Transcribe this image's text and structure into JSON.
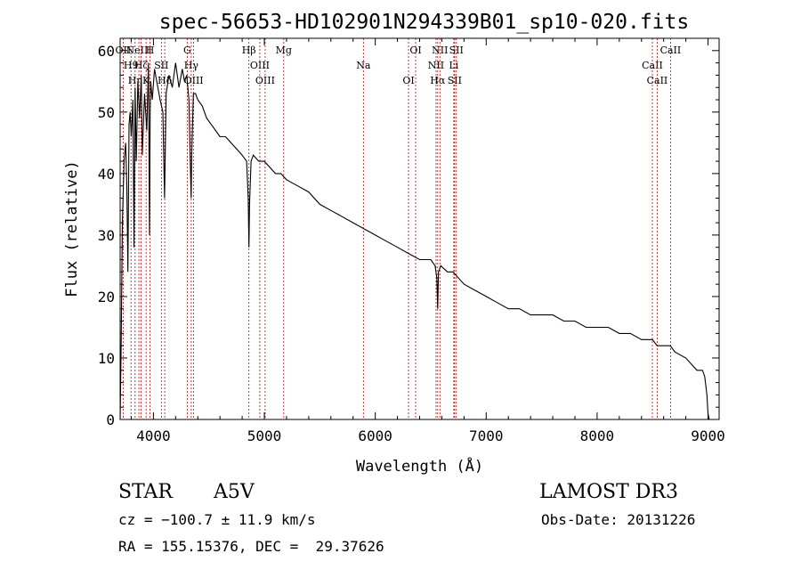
{
  "chart_data": {
    "type": "line",
    "title": "spec-56653-HD102901N294339B01_sp10-020.fits",
    "xlabel": "Wavelength (Å)",
    "ylabel": "Flux (relative)",
    "xlim": [
      3700,
      9100
    ],
    "ylim": [
      0,
      62
    ],
    "xticks": [
      4000,
      5000,
      6000,
      7000,
      8000,
      9000
    ],
    "yticks": [
      0,
      10,
      20,
      30,
      40,
      50,
      60
    ],
    "grid": false,
    "series": [
      {
        "name": "spectrum",
        "x": [
          3700,
          3710,
          3720,
          3735,
          3750,
          3760,
          3770,
          3780,
          3790,
          3800,
          3815,
          3825,
          3835,
          3845,
          3860,
          3875,
          3890,
          3900,
          3920,
          3940,
          3955,
          3965,
          3970,
          3975,
          3990,
          4010,
          4030,
          4060,
          4085,
          4100,
          4115,
          4140,
          4170,
          4200,
          4230,
          4260,
          4280,
          4300,
          4320,
          4335,
          4340,
          4345,
          4360,
          4380,
          4400,
          4440,
          4480,
          4520,
          4560,
          4600,
          4650,
          4700,
          4750,
          4800,
          4840,
          4855,
          4861,
          4867,
          4880,
          4900,
          4950,
          5000,
          5050,
          5100,
          5150,
          5200,
          5300,
          5400,
          5500,
          5600,
          5700,
          5800,
          5900,
          6000,
          6100,
          6200,
          6300,
          6400,
          6450,
          6500,
          6540,
          6555,
          6563,
          6570,
          6590,
          6650,
          6700,
          6800,
          6900,
          7000,
          7100,
          7200,
          7300,
          7400,
          7500,
          7600,
          7700,
          7800,
          7900,
          8000,
          8100,
          8200,
          8300,
          8400,
          8450,
          8500,
          8540,
          8600,
          8660,
          8700,
          8800,
          8850,
          8900,
          8950,
          8970,
          8990,
          9000,
          9010
        ],
        "y": [
          0,
          13,
          32,
          42,
          45,
          38,
          24,
          48,
          50,
          46,
          52,
          28,
          54,
          42,
          55,
          49,
          56,
          43,
          53,
          47,
          58,
          30,
          50,
          55,
          52,
          57,
          55,
          52,
          50,
          36,
          53,
          56,
          54,
          58,
          54,
          57,
          55,
          56,
          52,
          40,
          36,
          43,
          53,
          53,
          52,
          51,
          49,
          48,
          47,
          46,
          46,
          45,
          44,
          43,
          42,
          36,
          28,
          35,
          42,
          43,
          42,
          42,
          41,
          40,
          40,
          39,
          38,
          37,
          35,
          34,
          33,
          32,
          31,
          30,
          29,
          28,
          27,
          26,
          26,
          26,
          25,
          23,
          18,
          24,
          25,
          24,
          24,
          22,
          21,
          20,
          19,
          18,
          18,
          17,
          17,
          17,
          16,
          16,
          15,
          15,
          15,
          14,
          14,
          13,
          13,
          13,
          12,
          12,
          12,
          11,
          10,
          9,
          8,
          8,
          7,
          4,
          1,
          0
        ]
      }
    ],
    "lines": [
      {
        "x": 3727,
        "label": "OII"
      },
      {
        "x": 3798,
        "label": "H9"
      },
      {
        "x": 3835,
        "label": "Hη"
      },
      {
        "x": 3869,
        "label": "NeIII"
      },
      {
        "x": 3889,
        "label": "Hζ"
      },
      {
        "x": 3934,
        "label": "K"
      },
      {
        "x": 3969,
        "label": "H"
      },
      {
        "x": 4072,
        "label": "SII"
      },
      {
        "x": 4102,
        "label": "Hδ"
      },
      {
        "x": 4305,
        "label": "G"
      },
      {
        "x": 4341,
        "label": "Hγ"
      },
      {
        "x": 4363,
        "label": "OIII"
      },
      {
        "x": 4861,
        "label": "Hβ"
      },
      {
        "x": 4959,
        "label": "OIII"
      },
      {
        "x": 5007,
        "label": "OIII"
      },
      {
        "x": 5175,
        "label": "Mg"
      },
      {
        "x": 5893,
        "label": "Na"
      },
      {
        "x": 6300,
        "label": "OI"
      },
      {
        "x": 6364,
        "label": "OI"
      },
      {
        "x": 6548,
        "label": "NII"
      },
      {
        "x": 6563,
        "label": "Hα"
      },
      {
        "x": 6583,
        "label": "NII"
      },
      {
        "x": 6708,
        "label": "Li"
      },
      {
        "x": 6716,
        "label": "SII"
      },
      {
        "x": 6731,
        "label": "SII"
      },
      {
        "x": 8498,
        "label": "CaII"
      },
      {
        "x": 8542,
        "label": "CaII"
      },
      {
        "x": 8662,
        "label": "CaII"
      }
    ]
  },
  "info": {
    "class": "STAR",
    "subclass": "A5V",
    "survey": "LAMOST DR3",
    "cz": "cz = −100.7 ± 11.9 km/s",
    "obs_date": "Obs-Date: 20131226",
    "coords": "RA = 155.15376, DEC =  29.37626"
  }
}
